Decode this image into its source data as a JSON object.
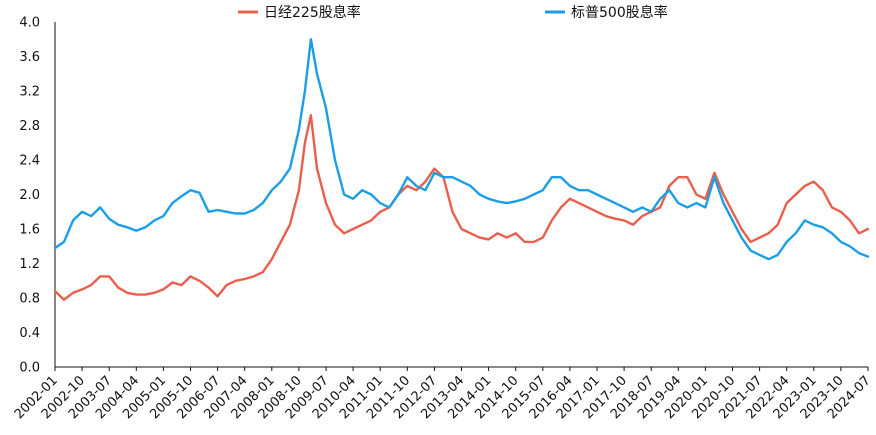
{
  "chart_data": {
    "type": "line",
    "title": "",
    "xlabel": "",
    "ylabel": "",
    "ylim": [
      0.0,
      4.0
    ],
    "yticks": [
      "0.0",
      "0.4",
      "0.8",
      "1.2",
      "1.6",
      "2.0",
      "2.4",
      "2.8",
      "3.2",
      "3.6",
      "4.0"
    ],
    "xticks": [
      "2002-01",
      "2002-10",
      "2003-07",
      "2004-04",
      "2005-01",
      "2005-10",
      "2006-07",
      "2007-04",
      "2008-01",
      "2008-10",
      "2009-07",
      "2010-04",
      "2011-01",
      "2011-10",
      "2012-07",
      "2013-04",
      "2014-01",
      "2014-10",
      "2015-07",
      "2016-04",
      "2017-01",
      "2017-10",
      "2018-07",
      "2019-04",
      "2020-01",
      "2020-10",
      "2021-07",
      "2022-04",
      "2023-01",
      "2023-10",
      "2024-07"
    ],
    "grid": false,
    "legend_position": "top",
    "series": [
      {
        "name": "日经225股息率",
        "color": "#e8604c",
        "points": [
          [
            "2002-01",
            0.88
          ],
          [
            "2002-04",
            0.78
          ],
          [
            "2002-07",
            0.86
          ],
          [
            "2002-10",
            0.9
          ],
          [
            "2003-01",
            0.95
          ],
          [
            "2003-04",
            1.05
          ],
          [
            "2003-07",
            1.05
          ],
          [
            "2003-10",
            0.92
          ],
          [
            "2004-01",
            0.86
          ],
          [
            "2004-04",
            0.84
          ],
          [
            "2004-07",
            0.84
          ],
          [
            "2004-10",
            0.86
          ],
          [
            "2005-01",
            0.9
          ],
          [
            "2005-04",
            0.98
          ],
          [
            "2005-07",
            0.95
          ],
          [
            "2005-10",
            1.05
          ],
          [
            "2006-01",
            1.0
          ],
          [
            "2006-04",
            0.92
          ],
          [
            "2006-07",
            0.82
          ],
          [
            "2006-10",
            0.95
          ],
          [
            "2007-01",
            1.0
          ],
          [
            "2007-04",
            1.02
          ],
          [
            "2007-07",
            1.05
          ],
          [
            "2007-10",
            1.1
          ],
          [
            "2008-01",
            1.25
          ],
          [
            "2008-04",
            1.45
          ],
          [
            "2008-07",
            1.65
          ],
          [
            "2008-10",
            2.05
          ],
          [
            "2008-12",
            2.6
          ],
          [
            "2009-02",
            2.92
          ],
          [
            "2009-04",
            2.3
          ],
          [
            "2009-07",
            1.9
          ],
          [
            "2009-10",
            1.65
          ],
          [
            "2010-01",
            1.55
          ],
          [
            "2010-04",
            1.6
          ],
          [
            "2010-07",
            1.65
          ],
          [
            "2010-10",
            1.7
          ],
          [
            "2011-01",
            1.8
          ],
          [
            "2011-04",
            1.85
          ],
          [
            "2011-07",
            2.0
          ],
          [
            "2011-10",
            2.1
          ],
          [
            "2012-01",
            2.05
          ],
          [
            "2012-04",
            2.15
          ],
          [
            "2012-07",
            2.3
          ],
          [
            "2012-10",
            2.2
          ],
          [
            "2013-01",
            1.8
          ],
          [
            "2013-04",
            1.6
          ],
          [
            "2013-07",
            1.55
          ],
          [
            "2013-10",
            1.5
          ],
          [
            "2014-01",
            1.48
          ],
          [
            "2014-04",
            1.55
          ],
          [
            "2014-07",
            1.5
          ],
          [
            "2014-10",
            1.55
          ],
          [
            "2015-01",
            1.45
          ],
          [
            "2015-04",
            1.45
          ],
          [
            "2015-07",
            1.5
          ],
          [
            "2015-10",
            1.7
          ],
          [
            "2016-01",
            1.85
          ],
          [
            "2016-04",
            1.95
          ],
          [
            "2016-07",
            1.9
          ],
          [
            "2016-10",
            1.85
          ],
          [
            "2017-01",
            1.8
          ],
          [
            "2017-04",
            1.75
          ],
          [
            "2017-07",
            1.72
          ],
          [
            "2017-10",
            1.7
          ],
          [
            "2018-01",
            1.65
          ],
          [
            "2018-04",
            1.75
          ],
          [
            "2018-07",
            1.8
          ],
          [
            "2018-10",
            1.85
          ],
          [
            "2019-01",
            2.1
          ],
          [
            "2019-04",
            2.2
          ],
          [
            "2019-07",
            2.2
          ],
          [
            "2019-10",
            2.0
          ],
          [
            "2020-01",
            1.95
          ],
          [
            "2020-04",
            2.25
          ],
          [
            "2020-07",
            2.0
          ],
          [
            "2020-10",
            1.8
          ],
          [
            "2021-01",
            1.6
          ],
          [
            "2021-04",
            1.45
          ],
          [
            "2021-07",
            1.5
          ],
          [
            "2021-10",
            1.55
          ],
          [
            "2022-01",
            1.65
          ],
          [
            "2022-04",
            1.9
          ],
          [
            "2022-07",
            2.0
          ],
          [
            "2022-10",
            2.1
          ],
          [
            "2023-01",
            2.15
          ],
          [
            "2023-04",
            2.05
          ],
          [
            "2023-07",
            1.85
          ],
          [
            "2023-10",
            1.8
          ],
          [
            "2024-01",
            1.7
          ],
          [
            "2024-04",
            1.55
          ],
          [
            "2024-07",
            1.6
          ]
        ]
      },
      {
        "name": "标普500股息率",
        "color": "#1c9ee6",
        "points": [
          [
            "2002-01",
            1.38
          ],
          [
            "2002-04",
            1.45
          ],
          [
            "2002-07",
            1.7
          ],
          [
            "2002-10",
            1.8
          ],
          [
            "2003-01",
            1.75
          ],
          [
            "2003-04",
            1.85
          ],
          [
            "2003-07",
            1.72
          ],
          [
            "2003-10",
            1.65
          ],
          [
            "2004-01",
            1.62
          ],
          [
            "2004-04",
            1.58
          ],
          [
            "2004-07",
            1.62
          ],
          [
            "2004-10",
            1.7
          ],
          [
            "2005-01",
            1.75
          ],
          [
            "2005-04",
            1.9
          ],
          [
            "2005-07",
            1.98
          ],
          [
            "2005-10",
            2.05
          ],
          [
            "2006-01",
            2.02
          ],
          [
            "2006-04",
            1.8
          ],
          [
            "2006-07",
            1.82
          ],
          [
            "2006-10",
            1.8
          ],
          [
            "2007-01",
            1.78
          ],
          [
            "2007-04",
            1.78
          ],
          [
            "2007-07",
            1.82
          ],
          [
            "2007-10",
            1.9
          ],
          [
            "2008-01",
            2.05
          ],
          [
            "2008-04",
            2.15
          ],
          [
            "2008-07",
            2.3
          ],
          [
            "2008-10",
            2.75
          ],
          [
            "2008-12",
            3.2
          ],
          [
            "2009-02",
            3.8
          ],
          [
            "2009-04",
            3.4
          ],
          [
            "2009-07",
            3.0
          ],
          [
            "2009-10",
            2.4
          ],
          [
            "2010-01",
            2.0
          ],
          [
            "2010-04",
            1.95
          ],
          [
            "2010-07",
            2.05
          ],
          [
            "2010-10",
            2.0
          ],
          [
            "2011-01",
            1.9
          ],
          [
            "2011-04",
            1.85
          ],
          [
            "2011-07",
            2.0
          ],
          [
            "2011-10",
            2.2
          ],
          [
            "2012-01",
            2.1
          ],
          [
            "2012-04",
            2.05
          ],
          [
            "2012-07",
            2.25
          ],
          [
            "2012-10",
            2.2
          ],
          [
            "2013-01",
            2.2
          ],
          [
            "2013-04",
            2.15
          ],
          [
            "2013-07",
            2.1
          ],
          [
            "2013-10",
            2.0
          ],
          [
            "2014-01",
            1.95
          ],
          [
            "2014-04",
            1.92
          ],
          [
            "2014-07",
            1.9
          ],
          [
            "2014-10",
            1.92
          ],
          [
            "2015-01",
            1.95
          ],
          [
            "2015-04",
            2.0
          ],
          [
            "2015-07",
            2.05
          ],
          [
            "2015-10",
            2.2
          ],
          [
            "2016-01",
            2.2
          ],
          [
            "2016-04",
            2.1
          ],
          [
            "2016-07",
            2.05
          ],
          [
            "2016-10",
            2.05
          ],
          [
            "2017-01",
            2.0
          ],
          [
            "2017-04",
            1.95
          ],
          [
            "2017-07",
            1.9
          ],
          [
            "2017-10",
            1.85
          ],
          [
            "2018-01",
            1.8
          ],
          [
            "2018-04",
            1.85
          ],
          [
            "2018-07",
            1.8
          ],
          [
            "2018-10",
            1.95
          ],
          [
            "2019-01",
            2.05
          ],
          [
            "2019-04",
            1.9
          ],
          [
            "2019-07",
            1.85
          ],
          [
            "2019-10",
            1.9
          ],
          [
            "2020-01",
            1.85
          ],
          [
            "2020-04",
            2.2
          ],
          [
            "2020-07",
            1.9
          ],
          [
            "2020-10",
            1.7
          ],
          [
            "2021-01",
            1.5
          ],
          [
            "2021-04",
            1.35
          ],
          [
            "2021-07",
            1.3
          ],
          [
            "2021-10",
            1.25
          ],
          [
            "2022-01",
            1.3
          ],
          [
            "2022-04",
            1.45
          ],
          [
            "2022-07",
            1.55
          ],
          [
            "2022-10",
            1.7
          ],
          [
            "2023-01",
            1.65
          ],
          [
            "2023-04",
            1.62
          ],
          [
            "2023-07",
            1.55
          ],
          [
            "2023-10",
            1.45
          ],
          [
            "2024-01",
            1.4
          ],
          [
            "2024-04",
            1.32
          ],
          [
            "2024-07",
            1.28
          ]
        ]
      }
    ]
  }
}
